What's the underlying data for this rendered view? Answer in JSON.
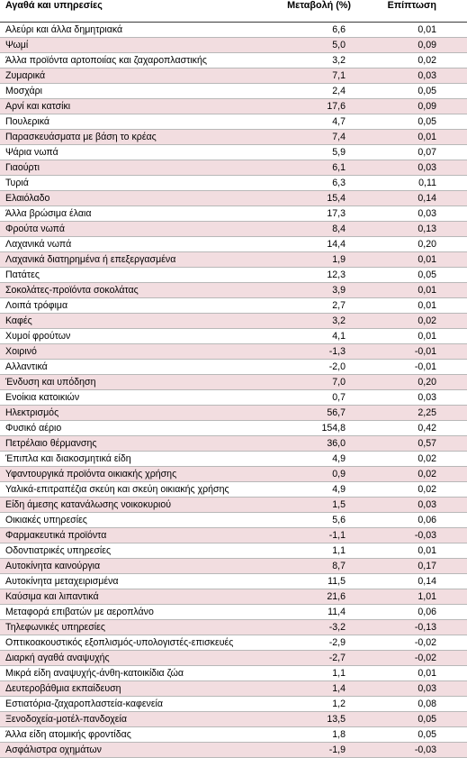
{
  "header": {
    "col_item": "Αγαθά και υπηρεσίες",
    "col_change": "Μεταβολή (%)",
    "col_effect": "Επίπτωση"
  },
  "rows": [
    {
      "item": "Αλεύρι και άλλα δημητριακά",
      "change": "6,6",
      "effect": "0,01"
    },
    {
      "item": "Ψωμί",
      "change": "5,0",
      "effect": "0,09"
    },
    {
      "item": "Άλλα προϊόντα αρτοποιίας και ζαχαροπλαστικής",
      "change": "3,2",
      "effect": "0,02"
    },
    {
      "item": "Ζυμαρικά",
      "change": "7,1",
      "effect": "0,03"
    },
    {
      "item": "Μοσχάρι",
      "change": "2,4",
      "effect": "0,05"
    },
    {
      "item": "Αρνί και κατσίκι",
      "change": "17,6",
      "effect": "0,09"
    },
    {
      "item": "Πουλερικά",
      "change": "4,7",
      "effect": "0,05"
    },
    {
      "item": "Παρασκευάσματα με βάση το κρέας",
      "change": "7,4",
      "effect": "0,01"
    },
    {
      "item": "Ψάρια νωπά",
      "change": "5,9",
      "effect": "0,07"
    },
    {
      "item": "Γιαούρτι",
      "change": "6,1",
      "effect": "0,03"
    },
    {
      "item": "Τυριά",
      "change": "6,3",
      "effect": "0,11"
    },
    {
      "item": "Ελαιόλαδο",
      "change": "15,4",
      "effect": "0,14"
    },
    {
      "item": "Άλλα βρώσιμα έλαια",
      "change": "17,3",
      "effect": "0,03"
    },
    {
      "item": "Φρούτα νωπά",
      "change": "8,4",
      "effect": "0,13"
    },
    {
      "item": "Λαχανικά νωπά",
      "change": "14,4",
      "effect": "0,20"
    },
    {
      "item": "Λαχανικά διατηρημένα ή επεξεργασμένα",
      "change": "1,9",
      "effect": "0,01"
    },
    {
      "item": "Πατάτες",
      "change": "12,3",
      "effect": "0,05"
    },
    {
      "item": "Σοκολάτες-προϊόντα σοκολάτας",
      "change": "3,9",
      "effect": "0,01"
    },
    {
      "item": "Λοιπά τρόφιμα",
      "change": "2,7",
      "effect": "0,01"
    },
    {
      "item": "Καφές",
      "change": "3,2",
      "effect": "0,02"
    },
    {
      "item": "Χυμοί φρούτων",
      "change": "4,1",
      "effect": "0,01"
    },
    {
      "item": "Χοιρινό",
      "change": "-1,3",
      "effect": "-0,01"
    },
    {
      "item": "Αλλαντικά",
      "change": "-2,0",
      "effect": "-0,01"
    },
    {
      "item": "Ένδυση και υπόδηση",
      "change": "7,0",
      "effect": "0,20"
    },
    {
      "item": "Ενοίκια κατοικιών",
      "change": "0,7",
      "effect": "0,03"
    },
    {
      "item": "Ηλεκτρισμός",
      "change": "56,7",
      "effect": "2,25"
    },
    {
      "item": "Φυσικό αέριο",
      "change": "154,8",
      "effect": "0,42"
    },
    {
      "item": "Πετρέλαιο θέρμανσης",
      "change": "36,0",
      "effect": "0,57"
    },
    {
      "item": "Έπιπλα και διακοσμητικά είδη",
      "change": "4,9",
      "effect": "0,02"
    },
    {
      "item": "Υφαντουργικά προϊόντα οικιακής χρήσης",
      "change": "0,9",
      "effect": "0,02"
    },
    {
      "item": "Υαλικά-επιτραπέζια σκεύη και σκεύη οικιακής χρήσης",
      "change": "4,9",
      "effect": "0,02"
    },
    {
      "item": "Είδη άμεσης κατανάλωσης νοικοκυριού",
      "change": "1,5",
      "effect": "0,03"
    },
    {
      "item": "Οικιακές υπηρεσίες",
      "change": "5,6",
      "effect": "0,06"
    },
    {
      "item": "Φαρμακευτικά προϊόντα",
      "change": "-1,1",
      "effect": "-0,03"
    },
    {
      "item": "Οδοντιατρικές υπηρεσίες",
      "change": "1,1",
      "effect": "0,01"
    },
    {
      "item": "Αυτοκίνητα καινούργια",
      "change": "8,7",
      "effect": "0,17"
    },
    {
      "item": "Αυτοκίνητα μεταχειρισμένα",
      "change": "11,5",
      "effect": "0,14"
    },
    {
      "item": "Καύσιμα και λιπαντικά",
      "change": "21,6",
      "effect": "1,01"
    },
    {
      "item": "Μεταφορά επιβατών με αεροπλάνο",
      "change": "11,4",
      "effect": "0,06"
    },
    {
      "item": "Τηλεφωνικές υπηρεσίες",
      "change": "-3,2",
      "effect": "-0,13"
    },
    {
      "item": "Οπτικοακουστικός εξοπλισμός-υπολογιστές-επισκευές",
      "change": "-2,9",
      "effect": "-0,02"
    },
    {
      "item": "Διαρκή αγαθά αναψυχής",
      "change": "-2,7",
      "effect": "-0,02"
    },
    {
      "item": "Μικρά είδη αναψυχής-άνθη-κατοικίδια ζώα",
      "change": "1,1",
      "effect": "0,01"
    },
    {
      "item": "Δευτεροβάθμια εκπαίδευση",
      "change": "1,4",
      "effect": "0,03"
    },
    {
      "item": "Εστιατόρια-ζαχαροπλαστεία-καφενεία",
      "change": "1,2",
      "effect": "0,08"
    },
    {
      "item": "Ξενοδοχεία-μοτέλ-πανδοχεία",
      "change": "13,5",
      "effect": "0,05"
    },
    {
      "item": "Άλλα είδη ατομικής φροντίδας",
      "change": "1,8",
      "effect": "0,05"
    },
    {
      "item": "Ασφάλιστρα οχημάτων",
      "change": "-1,9",
      "effect": "-0,03"
    }
  ],
  "colors": {
    "shaded_row": "#f2dde0",
    "plain_row": "#ffffff"
  }
}
